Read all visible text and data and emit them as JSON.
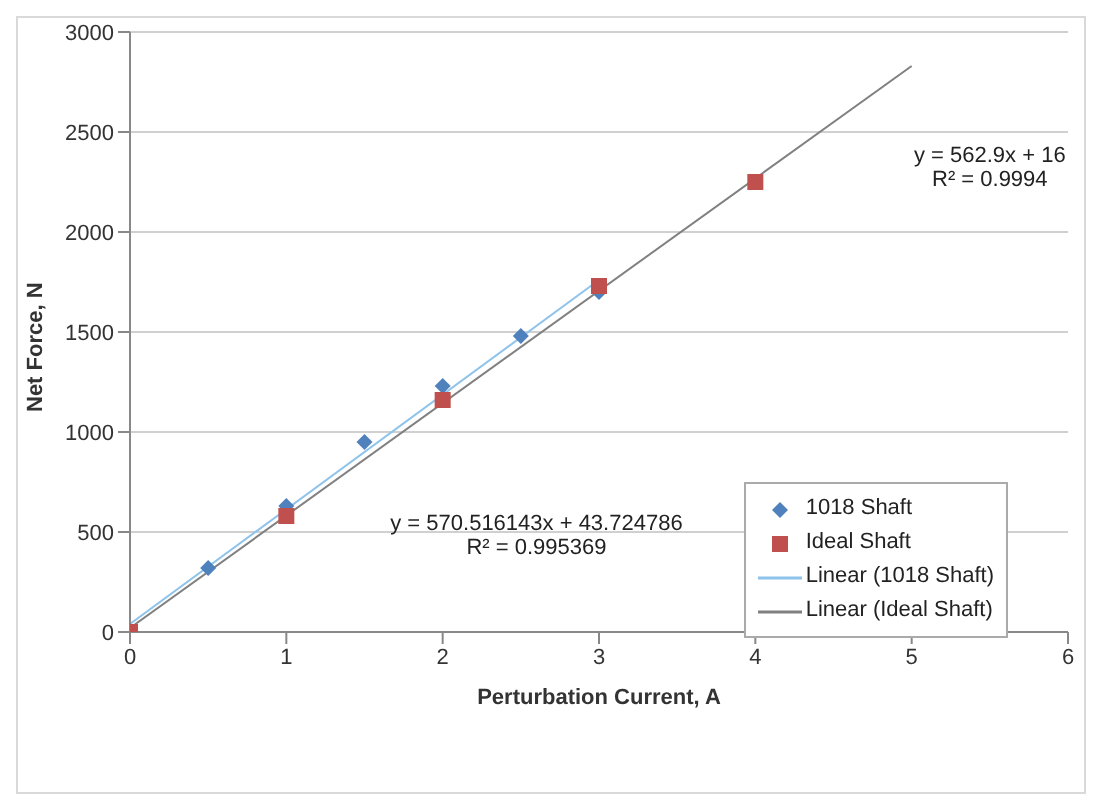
{
  "chart_data": {
    "type": "scatter",
    "xlabel": "Perturbation Current, A",
    "ylabel": "Net Force, N",
    "xlim": [
      0,
      6
    ],
    "xticks": [
      0,
      1,
      2,
      3,
      4,
      5,
      6
    ],
    "ylim": [
      0,
      3000
    ],
    "yticks": [
      0,
      500,
      1000,
      1500,
      2000,
      2500,
      3000
    ],
    "grid": "y",
    "legend": "right",
    "series": [
      {
        "name": "1018 Shaft",
        "marker": "diamond",
        "color": "#4f81bd",
        "x": [
          0.5,
          1,
          1.5,
          2,
          2.5,
          3
        ],
        "values": [
          320,
          630,
          950,
          1230,
          1480,
          1700
        ]
      },
      {
        "name": "Ideal Shaft",
        "marker": "square",
        "color": "#c0504d",
        "x": [
          0,
          1,
          2,
          3,
          4
        ],
        "values": [
          0,
          580,
          1160,
          1730,
          2250
        ]
      },
      {
        "name": "Linear (1018 Shaft)",
        "type": "line",
        "color": "#8ec3ec",
        "x": [
          0,
          3
        ],
        "values": [
          40,
          1760
        ]
      },
      {
        "name": "Linear (Ideal Shaft)",
        "type": "line",
        "color": "#808080",
        "x": [
          0,
          5
        ],
        "values": [
          20,
          2830
        ]
      }
    ],
    "annotations": [
      "y = 570.516143x + 43.724786\nR² = 0.995369",
      "y = 562.9x + 16\nR² = 0.9994"
    ]
  }
}
